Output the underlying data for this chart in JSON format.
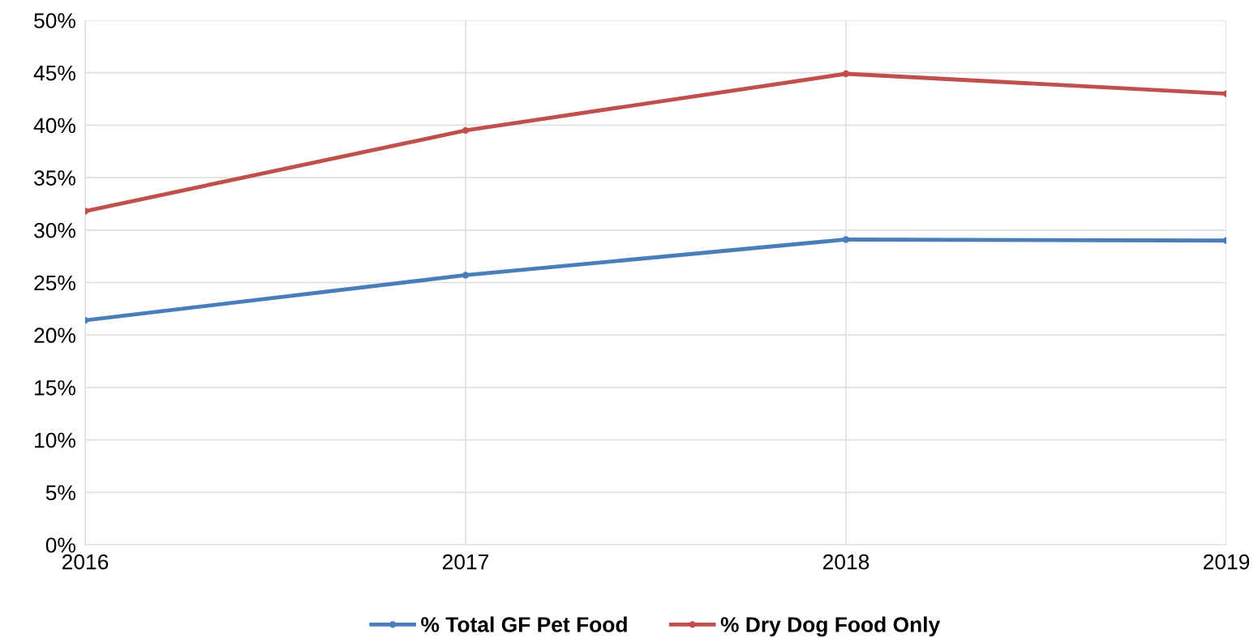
{
  "chart_data": {
    "type": "line",
    "x": [
      2016,
      2017,
      2018,
      2019
    ],
    "series": [
      {
        "name": "% Total GF Pet Food",
        "color": "#4a7ebb",
        "values": [
          21.4,
          25.7,
          29.1,
          29.0
        ]
      },
      {
        "name": "% Dry Dog Food Only",
        "color": "#c0504d",
        "values": [
          31.8,
          39.5,
          44.9,
          43.0
        ]
      }
    ],
    "xlim": [
      2016,
      2019
    ],
    "xticks": [
      2016,
      2017,
      2018,
      2019
    ],
    "ylim": [
      0,
      50
    ],
    "yticks": [
      {
        "value": 0,
        "label": "0%"
      },
      {
        "value": 5,
        "label": "5%"
      },
      {
        "value": 10,
        "label": "10%"
      },
      {
        "value": 15,
        "label": "15%"
      },
      {
        "value": 20,
        "label": "20%"
      },
      {
        "value": 25,
        "label": "25%"
      },
      {
        "value": 30,
        "label": "30%"
      },
      {
        "value": 35,
        "label": "35%"
      },
      {
        "value": 40,
        "label": "40%"
      },
      {
        "value": 45,
        "label": "45%"
      },
      {
        "value": 50,
        "label": "50%"
      }
    ],
    "grid": true,
    "legend": "bottom",
    "marker": "circle",
    "line_style": "solid"
  }
}
